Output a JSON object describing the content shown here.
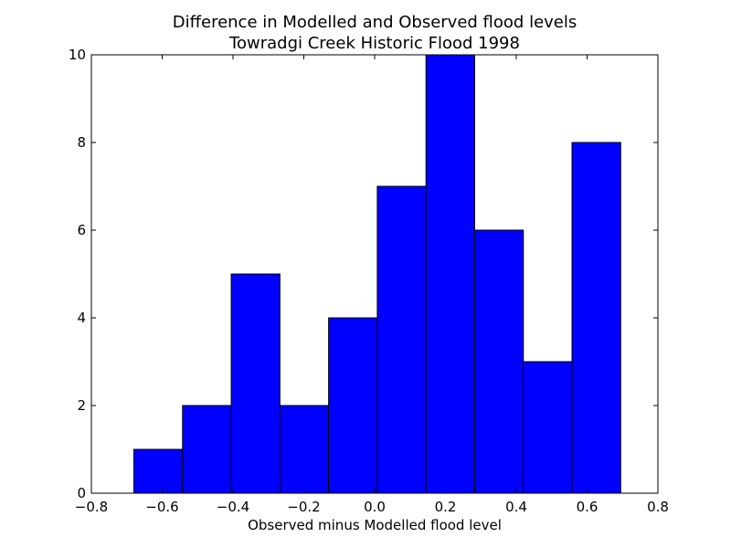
{
  "chart_data": {
    "type": "bar",
    "title": "Difference in Modelled and Observed flood levels",
    "subtitle": "Towradgi Creek Historic Flood 1998",
    "xlabel": "Observed minus Modelled flood level",
    "ylabel": "",
    "xlim": [
      -0.8,
      0.8
    ],
    "ylim": [
      0,
      10
    ],
    "bin_edges": [
      -0.68,
      -0.5425,
      -0.405,
      -0.2675,
      -0.13,
      0.0075,
      0.145,
      0.2825,
      0.42,
      0.5575,
      0.695
    ],
    "values": [
      1,
      2,
      5,
      2,
      4,
      7,
      10,
      6,
      3,
      8
    ],
    "xticks": [
      -0.8,
      -0.6,
      -0.4,
      -0.2,
      0.0,
      0.2,
      0.4,
      0.6,
      0.8
    ],
    "xtick_labels": [
      "−0.8",
      "−0.6",
      "−0.4",
      "−0.2",
      "0.0",
      "0.2",
      "0.4",
      "0.6",
      "0.8"
    ],
    "yticks": [
      0,
      2,
      4,
      6,
      8,
      10
    ],
    "ytick_labels": [
      "0",
      "2",
      "4",
      "6",
      "8",
      "10"
    ],
    "bar_color": "#0000ff",
    "edge_color": "#000000",
    "grid": false,
    "legend": "none"
  }
}
